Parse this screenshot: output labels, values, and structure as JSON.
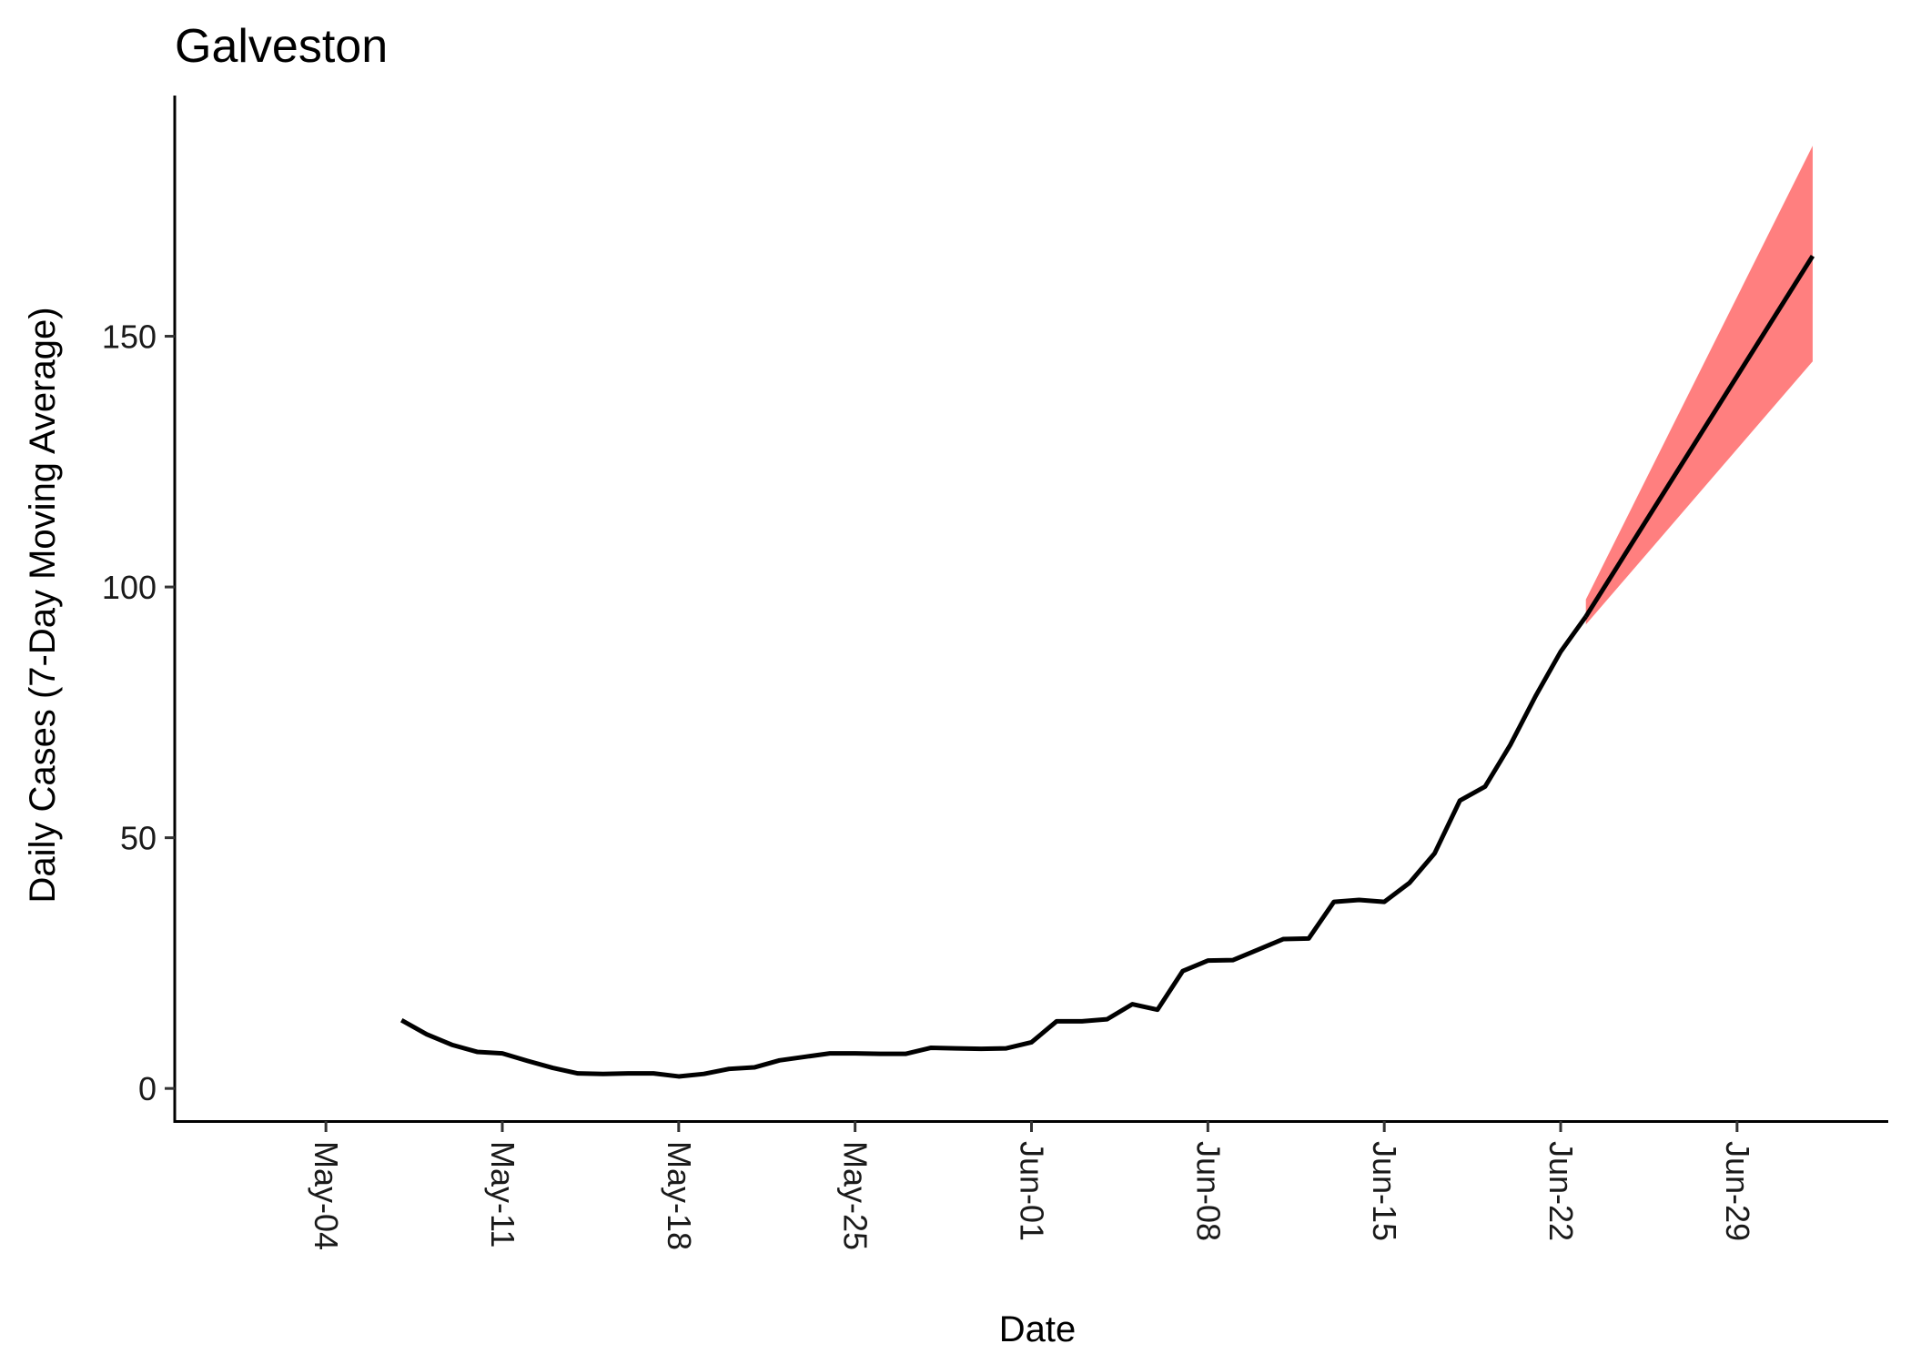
{
  "chart_data": {
    "type": "line",
    "title": "Galveston",
    "xlabel": "Date",
    "ylabel": "Daily Cases (7-Day Moving Average)",
    "x_ticks": [
      "May-04",
      "May-11",
      "May-18",
      "May-25",
      "Jun-01",
      "Jun-08",
      "Jun-15",
      "Jun-22",
      "Jun-29"
    ],
    "y_ticks": [
      0,
      50,
      100,
      150
    ],
    "xlim": [
      "2020-04-28",
      "2020-07-05"
    ],
    "ylim": [
      -6.5,
      198
    ],
    "grid": false,
    "legend": "none",
    "series": [
      {
        "x": [
          "2020-05-07",
          "2020-05-08",
          "2020-05-09",
          "2020-05-10",
          "2020-05-11",
          "2020-05-12",
          "2020-05-13",
          "2020-05-14",
          "2020-05-15",
          "2020-05-16",
          "2020-05-17",
          "2020-05-18",
          "2020-05-19",
          "2020-05-20",
          "2020-05-21",
          "2020-05-22",
          "2020-05-23",
          "2020-05-24",
          "2020-05-25",
          "2020-05-26",
          "2020-05-27",
          "2020-05-28",
          "2020-05-29",
          "2020-05-30",
          "2020-05-31",
          "2020-06-01",
          "2020-06-02",
          "2020-06-03",
          "2020-06-04",
          "2020-06-05",
          "2020-06-06",
          "2020-06-07",
          "2020-06-08",
          "2020-06-09",
          "2020-06-10",
          "2020-06-11",
          "2020-06-12",
          "2020-06-13",
          "2020-06-14",
          "2020-06-15",
          "2020-06-16",
          "2020-06-17",
          "2020-06-18",
          "2020-06-19",
          "2020-06-20",
          "2020-06-21",
          "2020-06-22",
          "2020-06-23"
        ],
        "values": [
          13.6,
          10.8,
          8.7,
          7.3,
          7.0,
          5.5,
          4.1,
          3.0,
          2.9,
          3.0,
          3.0,
          2.4,
          2.9,
          3.9,
          4.2,
          5.6,
          6.3,
          7.0,
          7.0,
          6.9,
          6.9,
          8.1,
          8.0,
          7.9,
          8.0,
          9.2,
          13.4,
          13.4,
          13.8,
          16.8,
          15.7,
          23.4,
          25.5,
          25.6,
          27.7,
          29.8,
          29.9,
          37.2,
          37.6,
          37.2,
          41.0,
          46.9,
          57.4,
          60.2,
          68.5,
          78.2,
          87.1,
          94.1
        ],
        "color": "#000000"
      },
      {
        "x": [
          "2020-06-23",
          "2020-07-02"
        ],
        "values": [
          94.1,
          166.0
        ],
        "color": "#000000",
        "ci_lower": [
          92.5,
          145.0
        ],
        "ci_upper": [
          97.5,
          188.0
        ],
        "ci_color": "#ff7f7f"
      }
    ]
  }
}
